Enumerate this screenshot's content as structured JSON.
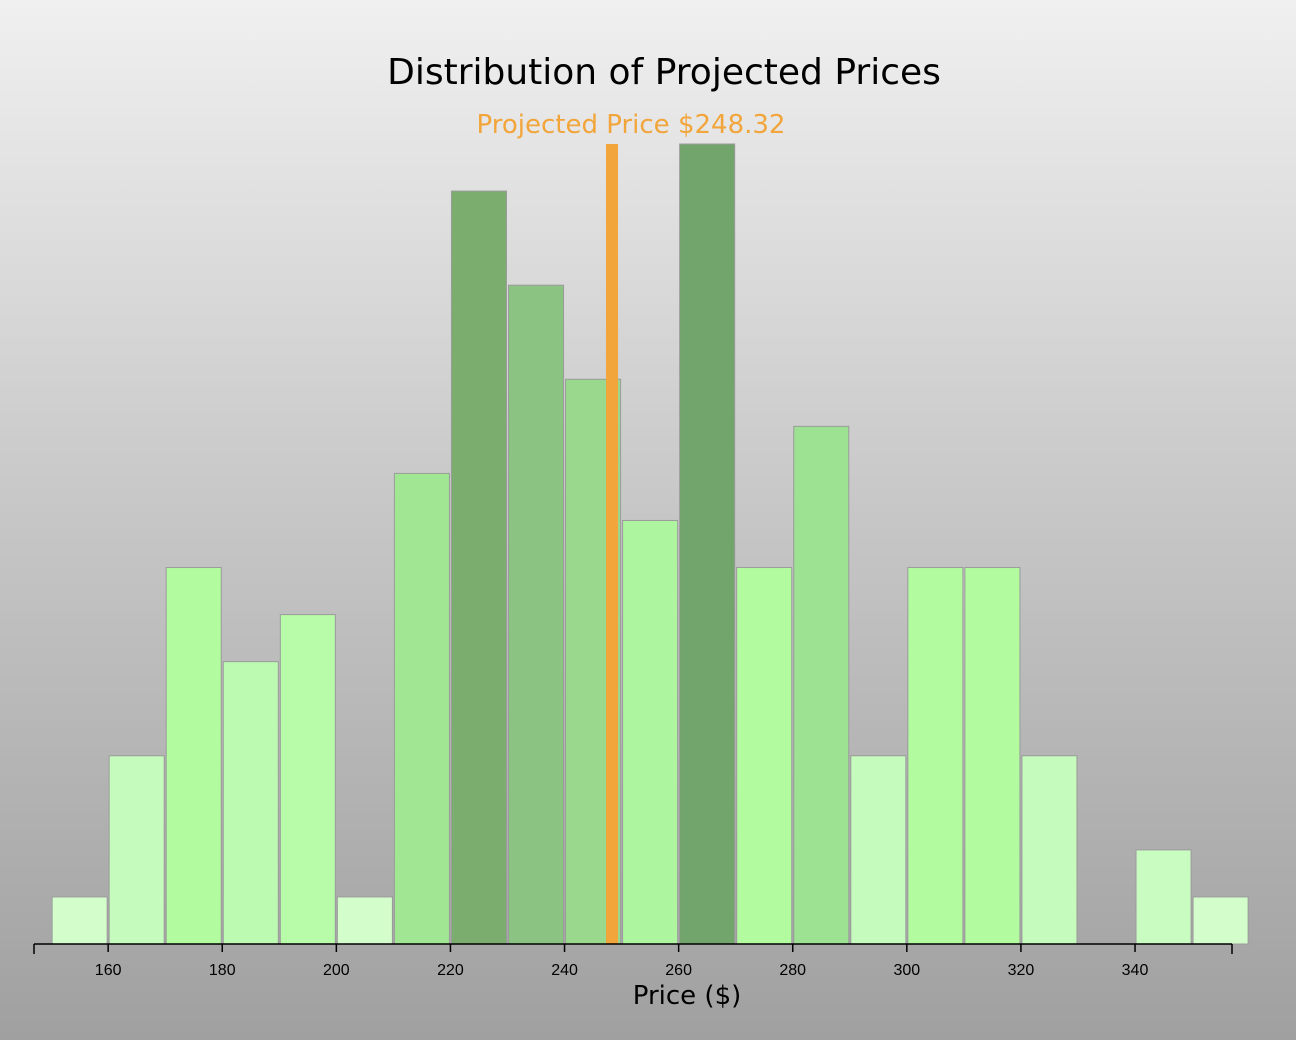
{
  "chart_data": {
    "type": "bar",
    "title": "Distribution of Projected Prices",
    "xlabel": "Price ($)",
    "ylabel": "",
    "xlim": [
      147,
      357
    ],
    "ylim": [
      0,
      17
    ],
    "bin_width": 10,
    "bins": [
      {
        "start": 150,
        "count": 1,
        "color": "#d4fdcc"
      },
      {
        "start": 160,
        "count": 4,
        "color": "#c5fbbc"
      },
      {
        "start": 170,
        "count": 8,
        "color": "#b2fc9f"
      },
      {
        "start": 180,
        "count": 6,
        "color": "#bbfab0"
      },
      {
        "start": 190,
        "count": 7,
        "color": "#b8fba8"
      },
      {
        "start": 200,
        "count": 1,
        "color": "#d4fdcc"
      },
      {
        "start": 210,
        "count": 10,
        "color": "#a1e693"
      },
      {
        "start": 220,
        "count": 16,
        "color": "#7bae6e"
      },
      {
        "start": 230,
        "count": 14,
        "color": "#8bc482"
      },
      {
        "start": 240,
        "count": 12,
        "color": "#9ad98d"
      },
      {
        "start": 250,
        "count": 9,
        "color": "#adf59f"
      },
      {
        "start": 260,
        "count": 17,
        "color": "#72a56b"
      },
      {
        "start": 270,
        "count": 8,
        "color": "#b2fc9f"
      },
      {
        "start": 280,
        "count": 11,
        "color": "#9de292"
      },
      {
        "start": 290,
        "count": 4,
        "color": "#c5fbbc"
      },
      {
        "start": 300,
        "count": 8,
        "color": "#b2fc9f"
      },
      {
        "start": 310,
        "count": 8,
        "color": "#b2fc9f"
      },
      {
        "start": 320,
        "count": 4,
        "color": "#c5fbbc"
      },
      {
        "start": 330,
        "count": 0,
        "color": "#d4fdcc"
      },
      {
        "start": 340,
        "count": 2,
        "color": "#c9fcc0"
      },
      {
        "start": 350,
        "count": 1,
        "color": "#d4fdcc"
      }
    ],
    "x_ticks": [
      "160",
      "180",
      "200",
      "220",
      "240",
      "260",
      "280",
      "300",
      "320",
      "340"
    ],
    "x_tick_values": [
      160,
      180,
      200,
      220,
      240,
      260,
      280,
      300,
      320,
      340
    ],
    "projected_price": 248.32,
    "projected_label": "Projected Price $248.32",
    "projected_color": "#f1a53a",
    "grid": false,
    "legend": "none"
  }
}
